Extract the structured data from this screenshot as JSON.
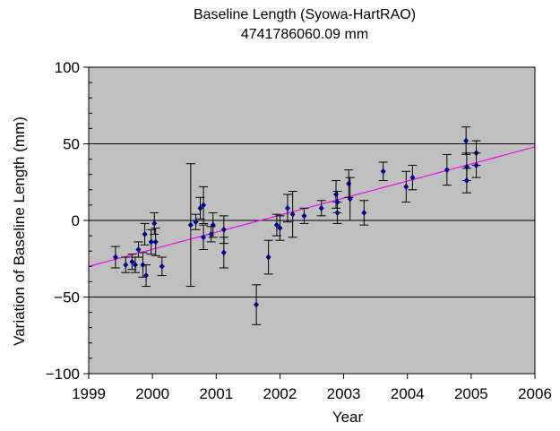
{
  "chart_data": {
    "type": "scatter",
    "title": "Baseline Length (Syowa-HartRAO)",
    "subtitle": "4741786060.09 mm",
    "xlabel": "Year",
    "ylabel": "Variation of Baseline Length (mm)",
    "xlim": [
      1999,
      2006
    ],
    "ylim": [
      -100,
      100
    ],
    "xticks": [
      "1999",
      "2000",
      "2001",
      "2002",
      "2003",
      "2004",
      "2005",
      "2006"
    ],
    "yticks": [
      "100",
      "50",
      "0",
      "−50",
      "−100"
    ],
    "grid": true,
    "background_color": "#c0c0c0",
    "marker_color": "#000080",
    "trend_color": "#ff00ff",
    "trend_line": {
      "x": [
        1999,
        2006
      ],
      "y": [
        -30,
        48
      ]
    },
    "series": [
      {
        "points": [
          {
            "x": 1999.42,
            "y": -24,
            "err": 7
          },
          {
            "x": 1999.58,
            "y": -29,
            "err": 5
          },
          {
            "x": 1999.68,
            "y": -27,
            "err": 5
          },
          {
            "x": 1999.73,
            "y": -29,
            "err": 5
          },
          {
            "x": 1999.78,
            "y": -19,
            "err": 5
          },
          {
            "x": 1999.85,
            "y": -29,
            "err": 8
          },
          {
            "x": 1999.88,
            "y": -9,
            "err": 7
          },
          {
            "x": 1999.9,
            "y": -36,
            "err": 7
          },
          {
            "x": 1999.98,
            "y": -14,
            "err": 8
          },
          {
            "x": 2000.03,
            "y": -2,
            "err": 7
          },
          {
            "x": 2000.05,
            "y": -14,
            "err": 9
          },
          {
            "x": 2000.15,
            "y": -30,
            "err": 6
          },
          {
            "x": 2000.6,
            "y": -3,
            "err": 40
          },
          {
            "x": 2000.68,
            "y": -1,
            "err": 5
          },
          {
            "x": 2000.75,
            "y": 8,
            "err": 7
          },
          {
            "x": 2000.8,
            "y": 10,
            "err": 12
          },
          {
            "x": 2000.8,
            "y": -11,
            "err": 8
          },
          {
            "x": 2000.92,
            "y": -9,
            "err": 5
          },
          {
            "x": 2000.95,
            "y": -3,
            "err": 8
          },
          {
            "x": 2001.12,
            "y": -6,
            "err": 9
          },
          {
            "x": 2001.12,
            "y": -21,
            "err": 10
          },
          {
            "x": 2001.63,
            "y": -55,
            "err": 13
          },
          {
            "x": 2001.82,
            "y": -24,
            "err": 11
          },
          {
            "x": 2001.95,
            "y": -3,
            "err": 7
          },
          {
            "x": 2002.0,
            "y": -5,
            "err": 8
          },
          {
            "x": 2002.12,
            "y": 8,
            "err": 9
          },
          {
            "x": 2002.2,
            "y": 4,
            "err": 15
          },
          {
            "x": 2002.38,
            "y": 3,
            "err": 5
          },
          {
            "x": 2002.65,
            "y": 8,
            "err": 5
          },
          {
            "x": 2002.88,
            "y": 17,
            "err": 9
          },
          {
            "x": 2002.9,
            "y": 5,
            "err": 7
          },
          {
            "x": 2002.9,
            "y": 12,
            "err": 7
          },
          {
            "x": 2003.08,
            "y": 24,
            "err": 9
          },
          {
            "x": 2003.1,
            "y": 14,
            "err": 14
          },
          {
            "x": 2003.32,
            "y": 5,
            "err": 8
          },
          {
            "x": 2003.62,
            "y": 32,
            "err": 6
          },
          {
            "x": 2003.98,
            "y": 22,
            "err": 10
          },
          {
            "x": 2004.08,
            "y": 28,
            "err": 8
          },
          {
            "x": 2004.62,
            "y": 33,
            "err": 10
          },
          {
            "x": 2004.92,
            "y": 52,
            "err": 9
          },
          {
            "x": 2004.93,
            "y": 35,
            "err": 9
          },
          {
            "x": 2004.93,
            "y": 26,
            "err": 8
          },
          {
            "x": 2005.08,
            "y": 44,
            "err": 8
          },
          {
            "x": 2005.08,
            "y": 36,
            "err": 8
          }
        ]
      }
    ]
  }
}
